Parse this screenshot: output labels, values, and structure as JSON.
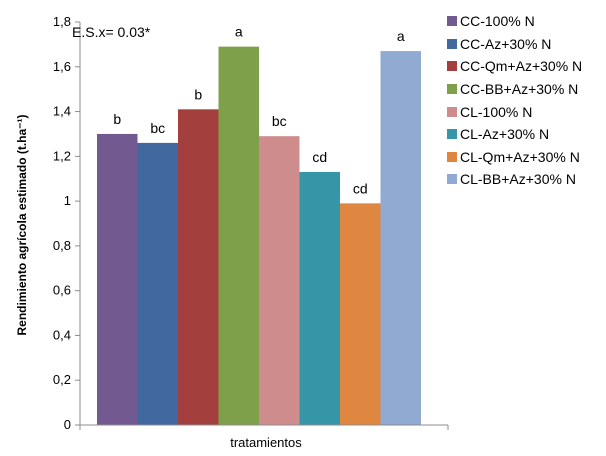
{
  "chart_data": {
    "type": "bar",
    "xlabel": "tratamientos",
    "ylabel": "Rendimiento agrícola estimado (t.ha⁻¹)",
    "annotation": "E.S.x= 0.03*",
    "ylim": [
      0,
      1.8
    ],
    "yticks": [
      "0",
      "0,2",
      "0,4",
      "0,6",
      "0,8",
      "1",
      "1,2",
      "1,4",
      "1,6",
      "1,8"
    ],
    "grid": false,
    "legend_position": "right",
    "series": [
      {
        "name": "CC-100% N",
        "value": 1.3,
        "letter": "b",
        "color": "#72598f"
      },
      {
        "name": "CC-Az+30% N",
        "value": 1.26,
        "letter": "bc",
        "color": "#4169a0"
      },
      {
        "name": "CC-Qm+Az+30% N",
        "value": 1.41,
        "letter": "b",
        "color": "#a3403e"
      },
      {
        "name": "CC-BB+Az+30% N",
        "value": 1.69,
        "letter": "a",
        "color": "#7fa04a"
      },
      {
        "name": "CL-100% N",
        "value": 1.29,
        "letter": "bc",
        "color": "#cf8c8c"
      },
      {
        "name": "CL-Az+30% N",
        "value": 1.13,
        "letter": "cd",
        "color": "#3596a8"
      },
      {
        "name": "CL-Qm+Az+30% N",
        "value": 0.99,
        "letter": "cd",
        "color": "#df8740"
      },
      {
        "name": "CL-BB+Az+30% N",
        "value": 1.67,
        "letter": "a",
        "color": "#91aad2"
      }
    ]
  }
}
